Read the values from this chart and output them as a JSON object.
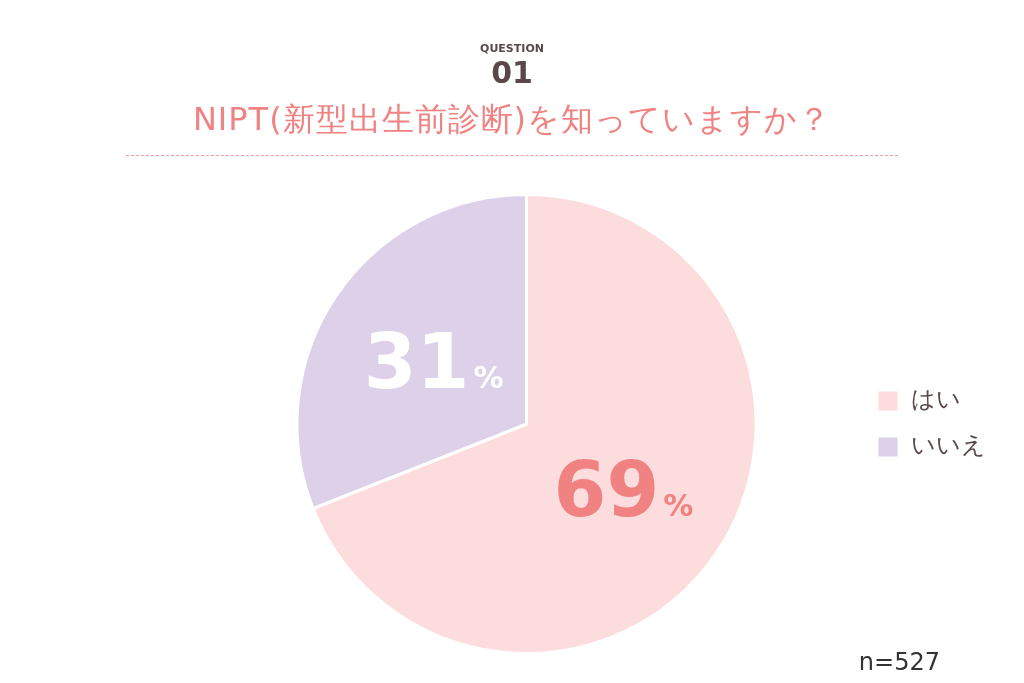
{
  "chart_data": {
    "type": "pie",
    "title": "NIPT(新型出生前診断)を知っていますか？",
    "annotations": [
      "QUESTION",
      "01",
      "n=527"
    ],
    "categories": [
      "はい",
      "いいえ"
    ],
    "values": [
      69,
      31
    ],
    "colors": [
      "#fcdcdc",
      "#ddd1ea"
    ],
    "value_labels": [
      "69%",
      "31%"
    ],
    "legend": "right"
  }
}
